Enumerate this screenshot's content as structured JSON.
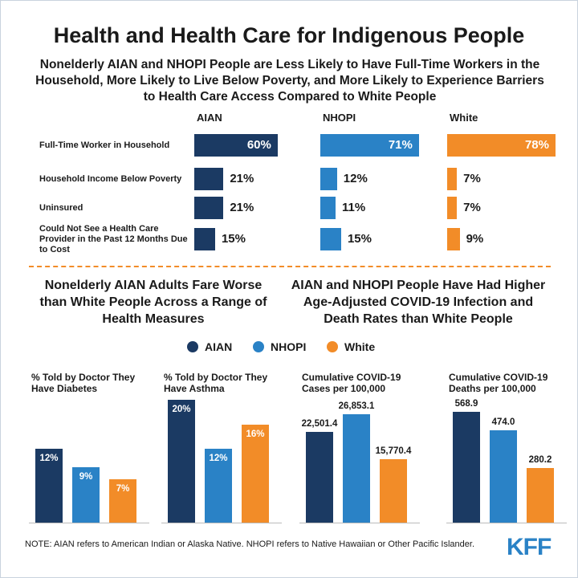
{
  "title": "Health and Health Care for Indigenous People",
  "sections": [
    {
      "title": "Nonelderly AIAN Adults Fare Worse than White People Across a Range of Health Measures"
    },
    {
      "title": "AIAN and NHOPI People Have Had Higher Age-Adjusted COVID-19 Infection and Death Rates than White People"
    }
  ],
  "note": "NOTE: AIAN refers to American Indian or Alaska Native. NHOPI refers to Native Hawaiian or Other Pacific Islander.",
  "logo": "KFF",
  "chart_data": [
    {
      "type": "bar",
      "orientation": "horizontal",
      "title": "Nonelderly AIAN and NHOPI People are Less Likely to Have Full-Time Workers in the Household, More Likely to Live Below Poverty, and More Likely to Experience Barriers to Health Care Access Compared to White People",
      "categories": [
        "Full-Time Worker in Household",
        "Household Income Below Poverty",
        "Uninsured",
        "Could Not See a Health Care Provider in the Past 12 Months Due to Cost"
      ],
      "series": [
        {
          "name": "AIAN",
          "color": "#1b3a63",
          "values": [
            60,
            21,
            21,
            15
          ],
          "value_labels": [
            "60%",
            "21%",
            "21%",
            "15%"
          ]
        },
        {
          "name": "NHOPI",
          "color": "#2a82c6",
          "values": [
            71,
            12,
            11,
            15
          ],
          "value_labels": [
            "71%",
            "12%",
            "11%",
            "15%"
          ]
        },
        {
          "name": "White",
          "color": "#f28c28",
          "values": [
            78,
            7,
            7,
            9
          ],
          "value_labels": [
            "78%",
            "7%",
            "7%",
            "9%"
          ]
        }
      ]
    },
    {
      "type": "bar",
      "title": "% Told by Doctor They Have Diabetes",
      "label_position": "inside",
      "series": [
        {
          "name": "AIAN",
          "color": "#1b3a63",
          "values": [
            12
          ],
          "value_labels": [
            "12%"
          ]
        },
        {
          "name": "NHOPI",
          "color": "#2a82c6",
          "values": [
            9
          ],
          "value_labels": [
            "9%"
          ]
        },
        {
          "name": "White",
          "color": "#f28c28",
          "values": [
            7
          ],
          "value_labels": [
            "7%"
          ]
        }
      ]
    },
    {
      "type": "bar",
      "title": "% Told by Doctor They Have Asthma",
      "label_position": "inside",
      "series": [
        {
          "name": "AIAN",
          "color": "#1b3a63",
          "values": [
            20
          ],
          "value_labels": [
            "20%"
          ]
        },
        {
          "name": "NHOPI",
          "color": "#2a82c6",
          "values": [
            12
          ],
          "value_labels": [
            "12%"
          ]
        },
        {
          "name": "White",
          "color": "#f28c28",
          "values": [
            16
          ],
          "value_labels": [
            "16%"
          ]
        }
      ]
    },
    {
      "type": "bar",
      "title": "Cumulative COVID-19 Cases per 100,000",
      "label_position": "above",
      "series": [
        {
          "name": "AIAN",
          "color": "#1b3a63",
          "values": [
            22501.4
          ],
          "value_labels": [
            "22,501.4"
          ]
        },
        {
          "name": "NHOPI",
          "color": "#2a82c6",
          "values": [
            26853.1
          ],
          "value_labels": [
            "26,853.1"
          ]
        },
        {
          "name": "White",
          "color": "#f28c28",
          "values": [
            15770.4
          ],
          "value_labels": [
            "15,770.4"
          ]
        }
      ]
    },
    {
      "type": "bar",
      "title": "Cumulative COVID-19 Deaths per 100,000",
      "label_position": "above",
      "series": [
        {
          "name": "AIAN",
          "color": "#1b3a63",
          "values": [
            568.9
          ],
          "value_labels": [
            "568.9"
          ]
        },
        {
          "name": "NHOPI",
          "color": "#2a82c6",
          "values": [
            474.0
          ],
          "value_labels": [
            "474.0"
          ]
        },
        {
          "name": "White",
          "color": "#f28c28",
          "values": [
            280.2
          ],
          "value_labels": [
            "280.2"
          ]
        }
      ]
    }
  ]
}
